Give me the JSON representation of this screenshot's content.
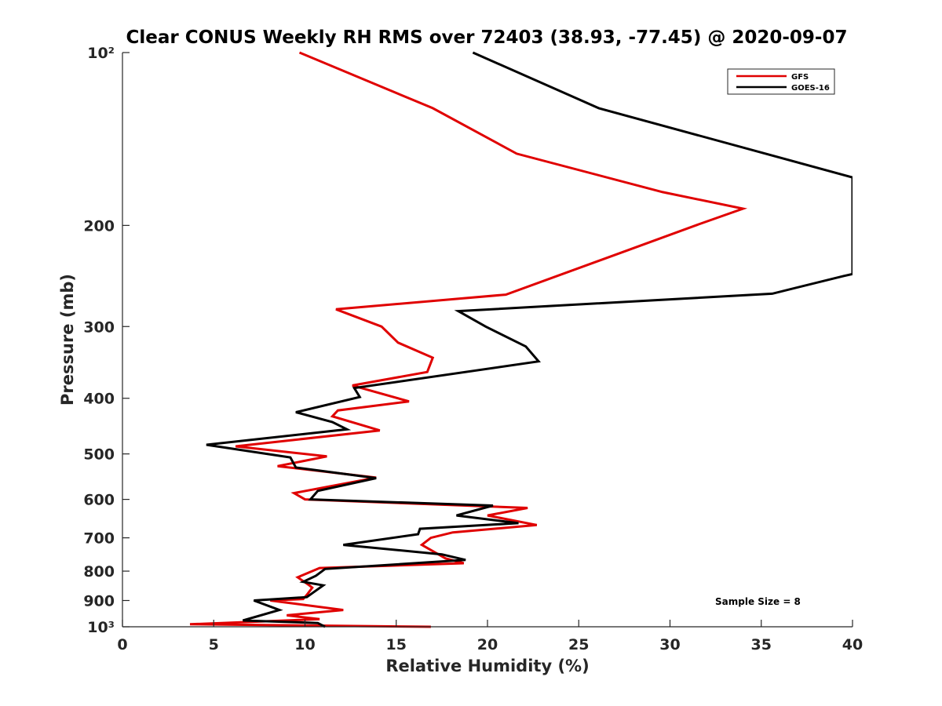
{
  "chart_data": {
    "type": "line",
    "title": "Clear CONUS Weekly RH RMS over 72403 (38.93, -77.45) @ 2020-09-07",
    "xlabel": "Relative Humidity (%)",
    "ylabel": "Pressure (mb)",
    "xlim": [
      0,
      40
    ],
    "ylim": [
      100,
      1000
    ],
    "yscale": "log",
    "y_reversed": true,
    "grid": false,
    "legend_position": "top-right",
    "x_ticks": [
      0,
      5,
      10,
      15,
      20,
      25,
      30,
      35,
      40
    ],
    "x_tick_labels": [
      "0",
      "5",
      "10",
      "15",
      "20",
      "25",
      "30",
      "35",
      "40"
    ],
    "y_ticks": [
      100,
      200,
      300,
      400,
      500,
      600,
      700,
      800,
      900,
      1000
    ],
    "y_tick_labels": [
      "10²",
      "200",
      "300",
      "400",
      "500",
      "600",
      "700",
      "800",
      "900",
      "10³"
    ],
    "annotation": "Sample Size = 8",
    "series": [
      {
        "name": "GFS",
        "color": "#e00000",
        "points": [
          [
            9.7,
            100
          ],
          [
            17,
            125
          ],
          [
            21.6,
            150
          ],
          [
            29.6,
            175
          ],
          [
            34,
            187
          ],
          [
            31.4,
            200
          ],
          [
            27,
            225
          ],
          [
            21,
            264
          ],
          [
            11.7,
            280
          ],
          [
            14.2,
            300
          ],
          [
            15.1,
            320
          ],
          [
            17,
            340
          ],
          [
            16.7,
            360
          ],
          [
            12.6,
            380
          ],
          [
            15.7,
            405
          ],
          [
            11.8,
            420
          ],
          [
            11.5,
            430
          ],
          [
            14.1,
            455
          ],
          [
            6.2,
            485
          ],
          [
            11.2,
            505
          ],
          [
            8.5,
            525
          ],
          [
            13.9,
            550
          ],
          [
            9.4,
            585
          ],
          [
            10,
            600
          ],
          [
            22.2,
            621
          ],
          [
            20,
            640
          ],
          [
            22.7,
            665
          ],
          [
            18.1,
            685
          ],
          [
            16.9,
            700
          ],
          [
            16.4,
            720
          ],
          [
            17.7,
            760
          ],
          [
            18.7,
            775
          ],
          [
            10.8,
            790
          ],
          [
            9.6,
            820
          ],
          [
            10.2,
            845
          ],
          [
            10.4,
            855
          ],
          [
            10.1,
            880
          ],
          [
            9.9,
            895
          ],
          [
            8.1,
            900
          ],
          [
            12.1,
            935
          ],
          [
            9,
            955
          ],
          [
            10.8,
            970
          ],
          [
            3.7,
            990
          ],
          [
            16.9,
            1000
          ]
        ]
      },
      {
        "name": "GOES-16",
        "color": "#000000",
        "points": [
          [
            19.2,
            100
          ],
          [
            26.1,
            125
          ],
          [
            40,
            165
          ],
          [
            40,
            243
          ],
          [
            39.5,
            245
          ],
          [
            35.6,
            263
          ],
          [
            18.4,
            282
          ],
          [
            19.9,
            300
          ],
          [
            22.1,
            325
          ],
          [
            22.8,
            345
          ],
          [
            12.7,
            384
          ],
          [
            13,
            398
          ],
          [
            9.5,
            423
          ],
          [
            11.5,
            440
          ],
          [
            12.3,
            453
          ],
          [
            4.6,
            482
          ],
          [
            9.2,
            507
          ],
          [
            9.5,
            528
          ],
          [
            13.9,
            551
          ],
          [
            10.7,
            580
          ],
          [
            10.3,
            600
          ],
          [
            20.3,
            615
          ],
          [
            18.3,
            640
          ],
          [
            21.7,
            660
          ],
          [
            16.3,
            675
          ],
          [
            16.2,
            690
          ],
          [
            12.1,
            720
          ],
          [
            17.5,
            748
          ],
          [
            18.8,
            765
          ],
          [
            11.1,
            793
          ],
          [
            10.6,
            815
          ],
          [
            9.9,
            835
          ],
          [
            11,
            847
          ],
          [
            10.1,
            888
          ],
          [
            7.2,
            900
          ],
          [
            8.6,
            935
          ],
          [
            6.6,
            975
          ],
          [
            10.7,
            985
          ],
          [
            11.1,
            1000
          ]
        ]
      }
    ]
  }
}
